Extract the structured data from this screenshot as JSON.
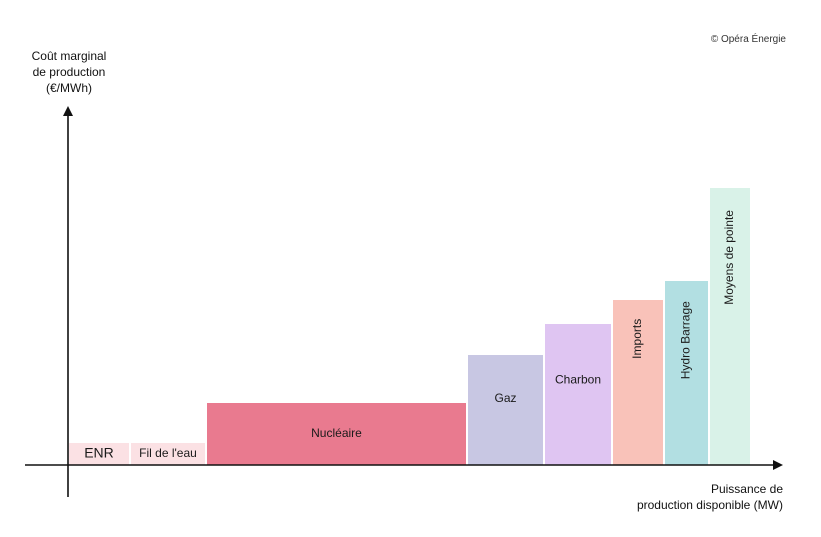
{
  "copyright": "© Opéra Énergie",
  "chart_data": {
    "type": "bar",
    "variant": "merit-order (variable-width bars)",
    "ylabel_lines": [
      "Coût marginal",
      "de production",
      "(€/MWh)"
    ],
    "xlabel_lines": [
      "Puissance de",
      "production disponible (MW)"
    ],
    "categories": [
      "ENR",
      "Fil de l'eau",
      "Nucléaire",
      "Gaz",
      "Charbon",
      "Imports",
      "Hydro Barrage",
      "Moyens de pointe"
    ],
    "bars": [
      {
        "label": "ENR",
        "width": 60,
        "value": 22,
        "color": "#fbe1e4",
        "label_orientation": "horizontal"
      },
      {
        "label": "Fil de l'eau",
        "width": 76,
        "value": 22,
        "color": "#fbe1e4",
        "label_orientation": "horizontal"
      },
      {
        "label": "Nucléaire",
        "width": 261,
        "value": 62,
        "color": "#e97a8f",
        "label_orientation": "horizontal"
      },
      {
        "label": "Gaz",
        "width": 77,
        "value": 110,
        "color": "#c8c7e3",
        "label_orientation": "horizontal"
      },
      {
        "label": "Charbon",
        "width": 68,
        "value": 141,
        "color": "#dfc5f2",
        "label_orientation": "horizontal"
      },
      {
        "label": "Imports",
        "width": 52,
        "value": 165,
        "color": "#f9c2b9",
        "label_orientation": "vertical"
      },
      {
        "label": "Hydro Barrage",
        "width": 45,
        "value": 184,
        "color": "#b2dfe2",
        "label_orientation": "vertical"
      },
      {
        "label": "Moyens de pointe",
        "width": 42,
        "value": 277,
        "color": "#d9f2e8",
        "label_orientation": "vertical"
      }
    ],
    "units": "arbitrary (schematic, no tick values shown)",
    "xlim": [
      0,
      710
    ],
    "ylim": [
      0,
      356
    ],
    "grid": false,
    "legend": "none"
  }
}
